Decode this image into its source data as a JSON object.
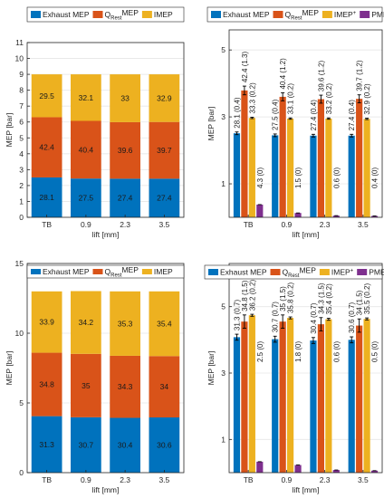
{
  "colors": {
    "exhaust": "#0072BD",
    "qrest": "#D95319",
    "imep": "#EDB120",
    "pmep": "#7E2F8E",
    "axis": "#262626",
    "grid": "#e6e6e6"
  },
  "chart_data": [
    {
      "type": "bar",
      "stacked": true,
      "categories": [
        "TB",
        "0.9",
        "2.3",
        "3.5"
      ],
      "xlabel": "lift [mm]",
      "ylabel": "MEP [bar]",
      "ylim": [
        0,
        11
      ],
      "yticks": [
        "0",
        "1",
        "2",
        "3",
        "4",
        "5",
        "6",
        "7",
        "8",
        "9",
        "10",
        "11"
      ],
      "grid": true,
      "legend": {
        "placement": "top",
        "labels": [
          "Exhaust MEP",
          "Q",
          "Rest",
          "MEP",
          "IMEP"
        ]
      },
      "series": [
        {
          "name": "Exhaust MEP",
          "color_key": "exhaust",
          "values": [
            2.51,
            2.44,
            2.43,
            2.43
          ],
          "labels": [
            "28.1",
            "27.5",
            "27.4",
            "27.4"
          ]
        },
        {
          "name": "QRestMEP",
          "color_key": "qrest",
          "values": [
            3.79,
            3.63,
            3.56,
            3.57
          ],
          "labels": [
            "42.4",
            "40.4",
            "39.6",
            "39.7"
          ]
        },
        {
          "name": "IMEP",
          "color_key": "imep",
          "values": [
            2.7,
            2.93,
            3.01,
            3.0
          ],
          "labels": [
            "29.5",
            "32.1",
            "33",
            "32.9"
          ]
        }
      ]
    },
    {
      "type": "bar",
      "grouped": true,
      "categories": [
        "TB",
        "0.9",
        "2.3",
        "3.5"
      ],
      "xlabel": "lift [mm]",
      "ylabel": "MEP [bar]",
      "ylim": [
        0,
        5.6
      ],
      "yticks": [
        "1",
        "3",
        "5"
      ],
      "ytick_values": [
        1,
        3,
        5
      ],
      "grid": true,
      "legend": {
        "placement": "top",
        "labels": [
          "Exhaust MEP",
          "Q",
          "Rest",
          "MEP",
          "IMEP",
          "+",
          "PMEP"
        ]
      },
      "series": [
        {
          "name": "Exhaust MEP",
          "color_key": "exhaust",
          "values": [
            2.51,
            2.45,
            2.44,
            2.44
          ],
          "err": [
            0.04,
            0.04,
            0.04,
            0.04
          ],
          "labels": [
            "28.1 (0.4)",
            "27.5 (0.4)",
            "27.4 (0.4)",
            "27.4 (0.4)"
          ]
        },
        {
          "name": "QRestMEP",
          "color_key": "qrest",
          "values": [
            3.79,
            3.6,
            3.53,
            3.54
          ],
          "err": [
            0.13,
            0.12,
            0.12,
            0.12
          ],
          "labels": [
            "42.4 (1.3)",
            "40.4 (1.2)",
            "39.6 (1.2)",
            "39.7 (1.2)"
          ]
        },
        {
          "name": "IMEP+",
          "color_key": "imep",
          "values": [
            2.97,
            2.95,
            2.95,
            2.94
          ],
          "err": [
            0.02,
            0.02,
            0.02,
            0.02
          ],
          "labels": [
            "33.3 (0.2)",
            "33.1 (0.2)",
            "33.2 (0.2)",
            "32.9 (0.2)"
          ]
        },
        {
          "name": "PMEP",
          "color_key": "pmep",
          "values": [
            0.38,
            0.13,
            0.05,
            0.04
          ],
          "err": [
            0.0,
            0.0,
            0.0,
            0.0
          ],
          "labels": [
            "4.3 (0)",
            "1.5 (0)",
            "0.6 (0)",
            "0.4 (0)"
          ]
        }
      ]
    },
    {
      "type": "bar",
      "stacked": true,
      "categories": [
        "TB",
        "0.9",
        "2.3",
        "3.5"
      ],
      "xlabel": "lift [mm]",
      "ylabel": "MEP [bar]",
      "ylim": [
        0,
        15
      ],
      "yticks": [
        "0",
        "5",
        "10",
        "15"
      ],
      "ytick_values": [
        0,
        5,
        10,
        15
      ],
      "grid": true,
      "legend": {
        "placement": "top",
        "labels": [
          "Exhaust MEP",
          "Q",
          "Rest",
          "MEP",
          "IMEP"
        ]
      },
      "series": [
        {
          "name": "Exhaust MEP",
          "color_key": "exhaust",
          "values": [
            4.05,
            3.97,
            3.93,
            3.96
          ],
          "labels": [
            "31.3",
            "30.7",
            "30.4",
            "30.6"
          ]
        },
        {
          "name": "QRestMEP",
          "color_key": "qrest",
          "values": [
            4.55,
            4.55,
            4.45,
            4.4
          ],
          "labels": [
            "34.8",
            "35",
            "34.3",
            "34"
          ]
        },
        {
          "name": "IMEP",
          "color_key": "imep",
          "values": [
            4.4,
            4.5,
            4.62,
            4.64
          ],
          "labels": [
            "33.9",
            "34.2",
            "35.3",
            "35.4"
          ]
        }
      ]
    },
    {
      "type": "bar",
      "grouped": true,
      "categories": [
        "TB",
        "0.9",
        "2.3",
        "3.5"
      ],
      "xlabel": "lift [mm]",
      "ylabel": "MEP [bar]",
      "ylim": [
        0,
        6.3
      ],
      "yticks": [
        "1",
        "3",
        "5"
      ],
      "ytick_values": [
        1,
        3,
        5
      ],
      "grid": true,
      "legend": {
        "placement": "top",
        "labels": [
          "Exhaust MEP",
          "Q",
          "Rest",
          "MEP",
          "IMEP",
          "+",
          "PMEP"
        ]
      },
      "series": [
        {
          "name": "Exhaust MEP",
          "color_key": "exhaust",
          "values": [
            4.08,
            4.02,
            3.98,
            4.0
          ],
          "err": [
            0.09,
            0.09,
            0.09,
            0.09
          ],
          "labels": [
            "31.3 (0.7)",
            "30.7 (0.7)",
            "30.4 (0.7)",
            "30.6 (0.7)"
          ]
        },
        {
          "name": "QRestMEP",
          "color_key": "qrest",
          "values": [
            4.55,
            4.55,
            4.47,
            4.43
          ],
          "err": [
            0.2,
            0.2,
            0.2,
            0.2
          ],
          "labels": [
            "34.8 (1.5)",
            "35 (1.5)",
            "34.3 (1.5)",
            "34 (1.5)"
          ]
        },
        {
          "name": "IMEP+",
          "color_key": "imep",
          "values": [
            4.74,
            4.66,
            4.62,
            4.63
          ],
          "err": [
            0.03,
            0.03,
            0.03,
            0.03
          ],
          "labels": [
            "36.2 (0.2)",
            "35.8 (0.2)",
            "35.4 (0.2)",
            "35.5 (0.2)"
          ]
        },
        {
          "name": "PMEP",
          "color_key": "pmep",
          "values": [
            0.33,
            0.23,
            0.08,
            0.06
          ],
          "err": [
            0.0,
            0.0,
            0.0,
            0.0
          ],
          "labels": [
            "2.5 (0)",
            "1.8 (0)",
            "0.6 (0)",
            "0.5 (0)"
          ]
        }
      ]
    }
  ]
}
